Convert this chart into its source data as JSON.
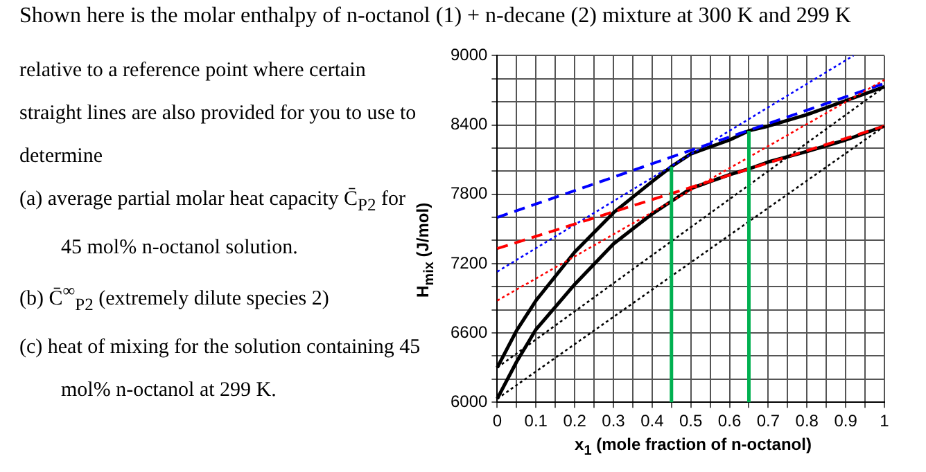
{
  "chart_data": {
    "type": "line",
    "title": "Shown here is the molar enthalpy of n-octanol (1) + n-decane (2) mixture at 300 K and 299 K",
    "annotations": [
      "relative to a reference point where certain straight lines are also provided for you to use to determine",
      "(a) average partial molar heat capacity C̄$_{P2}$ for 45 mol% n-octanol solution.",
      "(b) C̄$^{∞}$$_{P2}$ (extremely dilute species 2)",
      "(c) heat of mixing for the solution containing 45 mol% n-octanol at 299 K."
    ],
    "xlabel": "x$_{1}$ (mole fraction of n-octanol)",
    "ylabel": "H$_{mix}$ (J/mol)",
    "xlim": [
      0,
      1
    ],
    "ylim": [
      6000,
      9000
    ],
    "xticks": [
      0,
      {
        "value": 0.05,
        "label": null
      },
      0.1,
      {
        "value": 0.15,
        "label": null
      },
      0.2,
      {
        "value": 0.25,
        "label": null
      },
      0.3,
      {
        "value": 0.35,
        "label": null
      },
      0.4,
      {
        "value": 0.45,
        "label": null
      },
      0.5,
      {
        "value": 0.55,
        "label": null
      },
      0.6,
      {
        "value": 0.65,
        "label": null
      },
      0.7,
      {
        "value": 0.75,
        "label": null
      },
      0.8,
      {
        "value": 0.85,
        "label": null
      },
      0.9,
      {
        "value": 0.95,
        "label": null
      },
      1
    ],
    "yticks": [
      6000,
      {
        "value": 6200,
        "label": null
      },
      {
        "value": 6400,
        "label": null
      },
      6600,
      {
        "value": 6800,
        "label": null
      },
      {
        "value": 7000,
        "label": null
      },
      7200,
      {
        "value": 7400,
        "label": null
      },
      {
        "value": 7600,
        "label": null
      },
      7800,
      {
        "value": 8000,
        "label": null
      },
      {
        "value": 8200,
        "label": null
      },
      8400,
      {
        "value": 8600,
        "label": null
      },
      {
        "value": 8800,
        "label": null
      },
      9000
    ],
    "grid": true,
    "marker": "none",
    "series": [
      {
        "color": "#000000",
        "line_style": "solid",
        "x": [
          0,
          0.05,
          0.1,
          0.2,
          0.3,
          0.4,
          0.45,
          0.5,
          0.6,
          0.65,
          0.7,
          0.8,
          0.9,
          1
        ],
        "values": [
          6300,
          6620,
          6880,
          7300,
          7640,
          7910,
          8040,
          8150,
          8270,
          8350,
          8390,
          8490,
          8610,
          8730
        ]
      },
      {
        "color": "#000000",
        "line_style": "solid",
        "x": [
          0,
          0.05,
          0.1,
          0.2,
          0.3,
          0.4,
          0.45,
          0.5,
          0.6,
          0.65,
          0.7,
          0.8,
          0.9,
          1
        ],
        "values": [
          6030,
          6350,
          6630,
          7020,
          7370,
          7630,
          7740,
          7850,
          7970,
          8020,
          8080,
          8170,
          8270,
          8390
        ]
      },
      {
        "color": "#0000ff",
        "line_style": "dashed",
        "x": [
          0,
          1
        ],
        "values": [
          7600,
          8760
        ]
      },
      {
        "color": "#0000ff",
        "line_style": "dotted",
        "x": [
          0,
          0.92
        ],
        "values": [
          7130,
          9000
        ]
      },
      {
        "color": "#ff0000",
        "line_style": "dashed",
        "x": [
          0,
          1
        ],
        "values": [
          7330,
          8390
        ]
      },
      {
        "color": "#ff0000",
        "line_style": "dotted",
        "x": [
          0,
          1
        ],
        "values": [
          6880,
          8790
        ]
      },
      {
        "color": "#000000",
        "line_style": "dotted",
        "x": [
          0,
          1
        ],
        "values": [
          6300,
          8730
        ]
      },
      {
        "color": "#000000",
        "line_style": "dotted",
        "x": [
          0,
          1
        ],
        "values": [
          6030,
          8390
        ]
      },
      {
        "color": "#00b050",
        "line_style": "solid",
        "x": [
          0.45,
          0.45
        ],
        "values": [
          6000,
          8040
        ]
      },
      {
        "color": "#00b050",
        "line_style": "solid",
        "x": [
          0.65,
          0.65
        ],
        "values": [
          6000,
          8350
        ]
      }
    ]
  }
}
